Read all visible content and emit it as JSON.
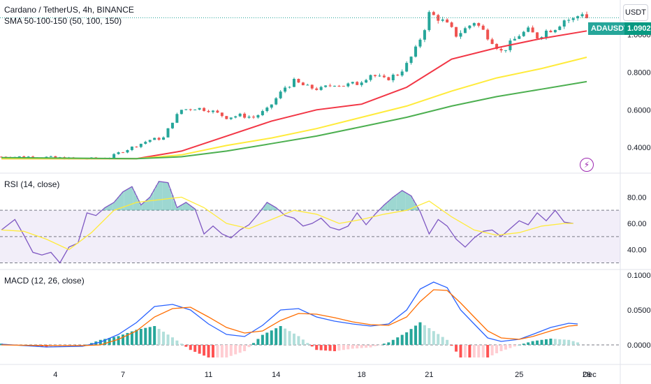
{
  "header": {
    "title": "Cardano / TetherUS, 4h, BINANCE",
    "sma_label": "SMA 50-100-150 (50, 100, 150)",
    "currency_button": "USDT",
    "symbol_tag": "ADAUSDT",
    "last_price": "1.0902"
  },
  "rsi_panel": {
    "label": "RSI (14, close)"
  },
  "macd_panel": {
    "label": "MACD (12, 26, close)"
  },
  "icons": {
    "alert": "lightning-icon"
  },
  "colors": {
    "up": "#26a69a",
    "down": "#ef5350",
    "sma50": "#f23645",
    "sma100": "#ffeb3b",
    "sma150": "#4caf50",
    "rsi": "#7e57c2",
    "rsi_ma": "#ffeb3b",
    "macd": "#2962ff",
    "signal": "#ff6d00",
    "tag_bg": "#26a69a",
    "tag_price_bg": "#089981"
  },
  "chart_data": [
    {
      "type": "candlestick",
      "title": "Cardano / TetherUS, 4h, BINANCE",
      "y_ticks": [
        "1.0000",
        "0.8000",
        "0.6000",
        "0.4000"
      ],
      "ylim": [
        0.27,
        1.17
      ],
      "x_ticks": [
        "4",
        "7",
        "11",
        "14",
        "18",
        "21",
        "25",
        "28",
        "Dec"
      ],
      "close_path": [
        [
          0,
          0.35
        ],
        [
          8,
          0.35
        ],
        [
          12,
          0.345
        ],
        [
          16,
          0.34
        ],
        [
          20,
          0.34
        ],
        [
          24,
          0.345
        ],
        [
          26,
          0.37
        ],
        [
          30,
          0.41
        ],
        [
          33,
          0.44
        ],
        [
          36,
          0.45
        ],
        [
          38,
          0.54
        ],
        [
          40,
          0.6
        ],
        [
          43,
          0.61
        ],
        [
          46,
          0.6
        ],
        [
          48,
          0.58
        ],
        [
          50,
          0.56
        ],
        [
          53,
          0.57
        ],
        [
          56,
          0.56
        ],
        [
          59,
          0.6
        ],
        [
          61,
          0.66
        ],
        [
          63,
          0.72
        ],
        [
          65,
          0.75
        ],
        [
          68,
          0.72
        ],
        [
          71,
          0.71
        ],
        [
          74,
          0.74
        ],
        [
          76,
          0.73
        ],
        [
          79,
          0.74
        ],
        [
          82,
          0.79
        ],
        [
          85,
          0.76
        ],
        [
          88,
          0.79
        ],
        [
          90,
          0.84
        ],
        [
          92,
          0.92
        ],
        [
          94,
          1.04
        ],
        [
          95,
          1.11
        ],
        [
          97,
          1.09
        ],
        [
          99,
          1.05
        ],
        [
          101,
          1.0
        ],
        [
          103,
          1.03
        ],
        [
          105,
          1.07
        ],
        [
          107,
          1.02
        ],
        [
          109,
          0.97
        ],
        [
          111,
          0.91
        ],
        [
          113,
          0.95
        ],
        [
          115,
          1.0
        ],
        [
          117,
          1.02
        ],
        [
          119,
          0.99
        ],
        [
          121,
          1.02
        ],
        [
          123,
          1.04
        ],
        [
          125,
          1.08
        ],
        [
          127,
          1.08
        ],
        [
          129,
          1.12
        ],
        [
          130,
          1.09
        ]
      ],
      "series": [
        {
          "name": "SMA 50",
          "values": [
            [
              0,
              0.34
            ],
            [
              30,
              0.34
            ],
            [
              40,
              0.38
            ],
            [
              50,
              0.46
            ],
            [
              60,
              0.54
            ],
            [
              70,
              0.6
            ],
            [
              80,
              0.63
            ],
            [
              90,
              0.72
            ],
            [
              100,
              0.87
            ],
            [
              110,
              0.93
            ],
            [
              120,
              0.98
            ],
            [
              130,
              1.02
            ]
          ]
        },
        {
          "name": "SMA 100",
          "values": [
            [
              0,
              0.34
            ],
            [
              30,
              0.34
            ],
            [
              40,
              0.36
            ],
            [
              50,
              0.41
            ],
            [
              60,
              0.45
            ],
            [
              70,
              0.5
            ],
            [
              80,
              0.56
            ],
            [
              90,
              0.62
            ],
            [
              100,
              0.7
            ],
            [
              110,
              0.77
            ],
            [
              120,
              0.82
            ],
            [
              130,
              0.88
            ]
          ]
        },
        {
          "name": "SMA 150",
          "values": [
            [
              0,
              0.345
            ],
            [
              30,
              0.34
            ],
            [
              40,
              0.35
            ],
            [
              50,
              0.38
            ],
            [
              60,
              0.42
            ],
            [
              70,
              0.46
            ],
            [
              80,
              0.51
            ],
            [
              90,
              0.56
            ],
            [
              100,
              0.62
            ],
            [
              110,
              0.67
            ],
            [
              120,
              0.71
            ],
            [
              130,
              0.75
            ]
          ]
        }
      ]
    },
    {
      "type": "line",
      "title": "RSI (14, close)",
      "y_ticks": [
        "80.00",
        "60.00",
        "40.00"
      ],
      "ylim": [
        26,
        94
      ],
      "bands": {
        "upper": 70,
        "middle": 50,
        "lower": 30
      },
      "series": [
        {
          "name": "RSI",
          "values": [
            [
              0,
              55
            ],
            [
              3,
              63
            ],
            [
              5,
              51
            ],
            [
              7,
              38
            ],
            [
              9,
              36
            ],
            [
              11,
              38
            ],
            [
              13,
              30
            ],
            [
              15,
              42
            ],
            [
              17,
              45
            ],
            [
              19,
              68
            ],
            [
              21,
              66
            ],
            [
              23,
              72
            ],
            [
              25,
              76
            ],
            [
              27,
              84
            ],
            [
              29,
              88
            ],
            [
              31,
              74
            ],
            [
              33,
              80
            ],
            [
              35,
              92
            ],
            [
              37,
              91
            ],
            [
              39,
              72
            ],
            [
              41,
              76
            ],
            [
              43,
              71
            ],
            [
              45,
              52
            ],
            [
              47,
              58
            ],
            [
              49,
              52
            ],
            [
              51,
              49
            ],
            [
              53,
              55
            ],
            [
              55,
              59
            ],
            [
              57,
              67
            ],
            [
              59,
              76
            ],
            [
              61,
              72
            ],
            [
              63,
              66
            ],
            [
              65,
              64
            ],
            [
              67,
              58
            ],
            [
              69,
              60
            ],
            [
              71,
              64
            ],
            [
              73,
              57
            ],
            [
              75,
              55
            ],
            [
              77,
              58
            ],
            [
              79,
              68
            ],
            [
              81,
              59
            ],
            [
              83,
              67
            ],
            [
              85,
              74
            ],
            [
              87,
              80
            ],
            [
              89,
              85
            ],
            [
              91,
              81
            ],
            [
              93,
              69
            ],
            [
              95,
              52
            ],
            [
              97,
              63
            ],
            [
              99,
              58
            ],
            [
              101,
              48
            ],
            [
              103,
              42
            ],
            [
              105,
              49
            ],
            [
              107,
              54
            ],
            [
              109,
              55
            ],
            [
              111,
              50
            ],
            [
              113,
              56
            ],
            [
              115,
              62
            ],
            [
              117,
              59
            ],
            [
              119,
              68
            ],
            [
              121,
              62
            ],
            [
              123,
              70
            ],
            [
              125,
              61
            ],
            [
              127,
              60
            ]
          ]
        },
        {
          "name": "RSI MA",
          "values": [
            [
              0,
              55
            ],
            [
              5,
              54
            ],
            [
              10,
              48
            ],
            [
              15,
              40
            ],
            [
              20,
              53
            ],
            [
              25,
              70
            ],
            [
              30,
              76
            ],
            [
              35,
              78
            ],
            [
              40,
              80
            ],
            [
              45,
              72
            ],
            [
              50,
              60
            ],
            [
              55,
              56
            ],
            [
              60,
              63
            ],
            [
              65,
              70
            ],
            [
              70,
              67
            ],
            [
              75,
              60
            ],
            [
              80,
              63
            ],
            [
              85,
              67
            ],
            [
              90,
              70
            ],
            [
              95,
              77
            ],
            [
              100,
              65
            ],
            [
              105,
              55
            ],
            [
              110,
              51
            ],
            [
              115,
              53
            ],
            [
              120,
              58
            ],
            [
              125,
              60
            ],
            [
              127,
              60
            ]
          ]
        }
      ]
    },
    {
      "type": "line",
      "title": "MACD (12, 26, close)",
      "y_ticks": [
        "0.1000",
        "0.0500",
        "0.0000"
      ],
      "ylim": [
        -0.026,
        0.104
      ],
      "series": [
        {
          "name": "MACD",
          "values": [
            [
              0,
              0.001
            ],
            [
              10,
              -0.003
            ],
            [
              18,
              -0.002
            ],
            [
              22,
              0.004
            ],
            [
              26,
              0.015
            ],
            [
              30,
              0.032
            ],
            [
              34,
              0.055
            ],
            [
              38,
              0.058
            ],
            [
              42,
              0.05
            ],
            [
              46,
              0.03
            ],
            [
              50,
              0.015
            ],
            [
              54,
              0.012
            ],
            [
              58,
              0.028
            ],
            [
              62,
              0.05
            ],
            [
              66,
              0.052
            ],
            [
              70,
              0.04
            ],
            [
              74,
              0.034
            ],
            [
              78,
              0.03
            ],
            [
              82,
              0.027
            ],
            [
              86,
              0.03
            ],
            [
              90,
              0.05
            ],
            [
              93,
              0.08
            ],
            [
              96,
              0.09
            ],
            [
              99,
              0.082
            ],
            [
              102,
              0.05
            ],
            [
              105,
              0.03
            ],
            [
              108,
              0.01
            ],
            [
              111,
              0.005
            ],
            [
              115,
              0.008
            ],
            [
              118,
              0.015
            ],
            [
              122,
              0.025
            ],
            [
              126,
              0.031
            ],
            [
              128,
              0.03
            ]
          ]
        },
        {
          "name": "Signal",
          "values": [
            [
              0,
              0.0
            ],
            [
              10,
              -0.001
            ],
            [
              18,
              -0.001
            ],
            [
              22,
              0.0
            ],
            [
              26,
              0.008
            ],
            [
              30,
              0.02
            ],
            [
              34,
              0.04
            ],
            [
              38,
              0.052
            ],
            [
              42,
              0.054
            ],
            [
              46,
              0.04
            ],
            [
              50,
              0.025
            ],
            [
              54,
              0.017
            ],
            [
              58,
              0.02
            ],
            [
              62,
              0.035
            ],
            [
              66,
              0.045
            ],
            [
              70,
              0.044
            ],
            [
              74,
              0.039
            ],
            [
              78,
              0.033
            ],
            [
              82,
              0.029
            ],
            [
              86,
              0.028
            ],
            [
              90,
              0.04
            ],
            [
              93,
              0.062
            ],
            [
              96,
              0.079
            ],
            [
              99,
              0.078
            ],
            [
              102,
              0.06
            ],
            [
              105,
              0.04
            ],
            [
              108,
              0.02
            ],
            [
              111,
              0.01
            ],
            [
              115,
              0.008
            ],
            [
              118,
              0.012
            ],
            [
              122,
              0.02
            ],
            [
              126,
              0.027
            ],
            [
              128,
              0.028
            ]
          ]
        }
      ]
    }
  ]
}
